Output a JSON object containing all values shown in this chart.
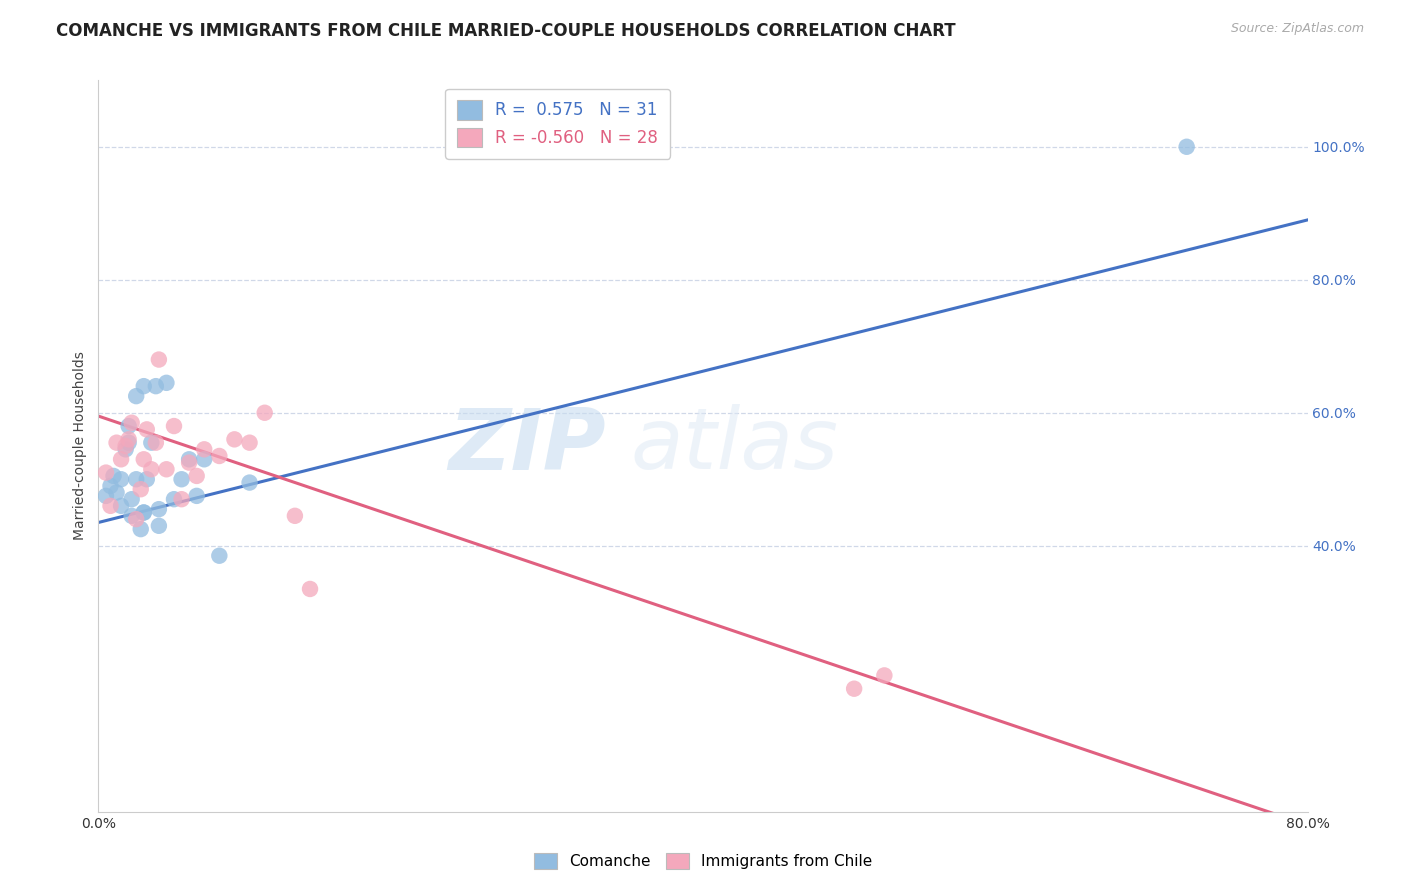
{
  "title": "COMANCHE VS IMMIGRANTS FROM CHILE MARRIED-COUPLE HOUSEHOLDS CORRELATION CHART",
  "source": "Source: ZipAtlas.com",
  "ylabel": "Married-couple Households",
  "xmin": 0.0,
  "xmax": 0.8,
  "ymin": 0.0,
  "ymax": 1.1,
  "legend_r_blue": "R =  0.575",
  "legend_n_blue": "N = 31",
  "legend_r_pink": "R = -0.560",
  "legend_n_pink": "N = 28",
  "blue_color": "#92bce0",
  "pink_color": "#f4a8bc",
  "blue_line_color": "#4472c4",
  "pink_line_color": "#e06080",
  "watermark_zip": "ZIP",
  "watermark_atlas": "atlas",
  "blue_scatter_x": [
    0.005,
    0.008,
    0.01,
    0.012,
    0.015,
    0.015,
    0.018,
    0.02,
    0.02,
    0.022,
    0.022,
    0.025,
    0.025,
    0.028,
    0.03,
    0.03,
    0.03,
    0.032,
    0.035,
    0.038,
    0.04,
    0.04,
    0.045,
    0.05,
    0.055,
    0.06,
    0.065,
    0.07,
    0.08,
    0.1,
    0.72
  ],
  "blue_scatter_y": [
    0.475,
    0.49,
    0.505,
    0.48,
    0.46,
    0.5,
    0.545,
    0.555,
    0.58,
    0.445,
    0.47,
    0.5,
    0.625,
    0.425,
    0.45,
    0.64,
    0.45,
    0.5,
    0.555,
    0.64,
    0.43,
    0.455,
    0.645,
    0.47,
    0.5,
    0.53,
    0.475,
    0.53,
    0.385,
    0.495,
    1.0
  ],
  "pink_scatter_x": [
    0.005,
    0.008,
    0.012,
    0.015,
    0.018,
    0.02,
    0.022,
    0.025,
    0.028,
    0.03,
    0.032,
    0.035,
    0.038,
    0.04,
    0.045,
    0.05,
    0.055,
    0.06,
    0.065,
    0.07,
    0.08,
    0.09,
    0.1,
    0.11,
    0.13,
    0.14,
    0.5,
    0.52
  ],
  "pink_scatter_y": [
    0.51,
    0.46,
    0.555,
    0.53,
    0.55,
    0.56,
    0.585,
    0.44,
    0.485,
    0.53,
    0.575,
    0.515,
    0.555,
    0.68,
    0.515,
    0.58,
    0.47,
    0.525,
    0.505,
    0.545,
    0.535,
    0.56,
    0.555,
    0.6,
    0.445,
    0.335,
    0.185,
    0.205
  ],
  "blue_line_x": [
    0.0,
    0.8
  ],
  "blue_line_y": [
    0.435,
    0.89
  ],
  "pink_line_x": [
    0.0,
    0.8
  ],
  "pink_line_y": [
    0.595,
    -0.02
  ],
  "ytick_vals": [
    0.4,
    0.6,
    0.8,
    1.0
  ],
  "ytick_labels": [
    "40.0%",
    "60.0%",
    "80.0%",
    "100.0%"
  ],
  "xtick_vals": [
    0.0,
    0.1,
    0.2,
    0.3,
    0.4,
    0.5,
    0.6,
    0.7,
    0.8
  ],
  "xtick_labels": [
    "0.0%",
    "",
    "",
    "",
    "",
    "",
    "",
    "",
    "80.0%"
  ],
  "grid_color": "#d0d8e8",
  "background_color": "#ffffff",
  "title_fontsize": 12,
  "axis_label_fontsize": 10,
  "tick_fontsize": 10,
  "legend_fontsize": 12,
  "right_tick_color": "#4472c4"
}
